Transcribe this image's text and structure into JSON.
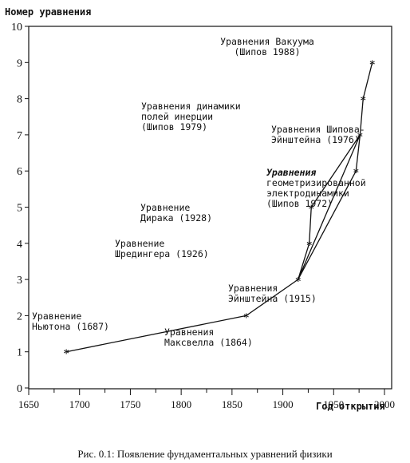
{
  "chart_data": {
    "type": "line",
    "title": "",
    "ylabel": "Номер уравнения",
    "xlabel": "Год открытия",
    "caption": "Рис. 0.1: Появление фундаментальных уравнений физики",
    "xlim": [
      1650,
      2000
    ],
    "ylim": [
      0,
      10
    ],
    "x_ticks": [
      1650,
      1700,
      1750,
      1800,
      1850,
      1900,
      1950,
      2000
    ],
    "y_ticks": [
      0,
      1,
      2,
      3,
      4,
      5,
      6,
      7,
      8,
      9,
      10
    ],
    "grid": false,
    "points": [
      {
        "x": 1687,
        "y": 1
      },
      {
        "x": 1864,
        "y": 2
      },
      {
        "x": 1915,
        "y": 3
      },
      {
        "x": 1926,
        "y": 4
      },
      {
        "x": 1928,
        "y": 5
      },
      {
        "x": 1976,
        "y": 7
      },
      {
        "x": 1972,
        "y": 6
      },
      {
        "x": 1979,
        "y": 8
      },
      {
        "x": 1988,
        "y": 9
      }
    ],
    "path_order": [
      0,
      1,
      2,
      3,
      4,
      5,
      6,
      2,
      5,
      7,
      8
    ],
    "annotations": [
      {
        "lines": [
          "Уравнение",
          "Ньютона (1687)"
        ]
      },
      {
        "lines": [
          "Уравнения",
          "Максвелла (1864)"
        ]
      },
      {
        "lines": [
          "Уравнения",
          "Эйнштейна (1915)"
        ]
      },
      {
        "lines": [
          "Уравнение",
          "Шредингера (1926)"
        ]
      },
      {
        "lines": [
          "Уравнение",
          "Дирака (1928)"
        ]
      },
      {
        "lines": [
          "Уравнения",
          "геометризированной",
          "электродинамики",
          "(Шипов 1972)"
        ]
      },
      {
        "lines": [
          "Уравнения Шипова-",
          "Эйнштейна (1976)"
        ]
      },
      {
        "lines": [
          "Уравнения динамики",
          "полей инерции",
          "(Шипов 1979)"
        ]
      },
      {
        "lines": [
          "Уравнения Вакуума",
          "(Шипов 1988)"
        ]
      }
    ]
  }
}
